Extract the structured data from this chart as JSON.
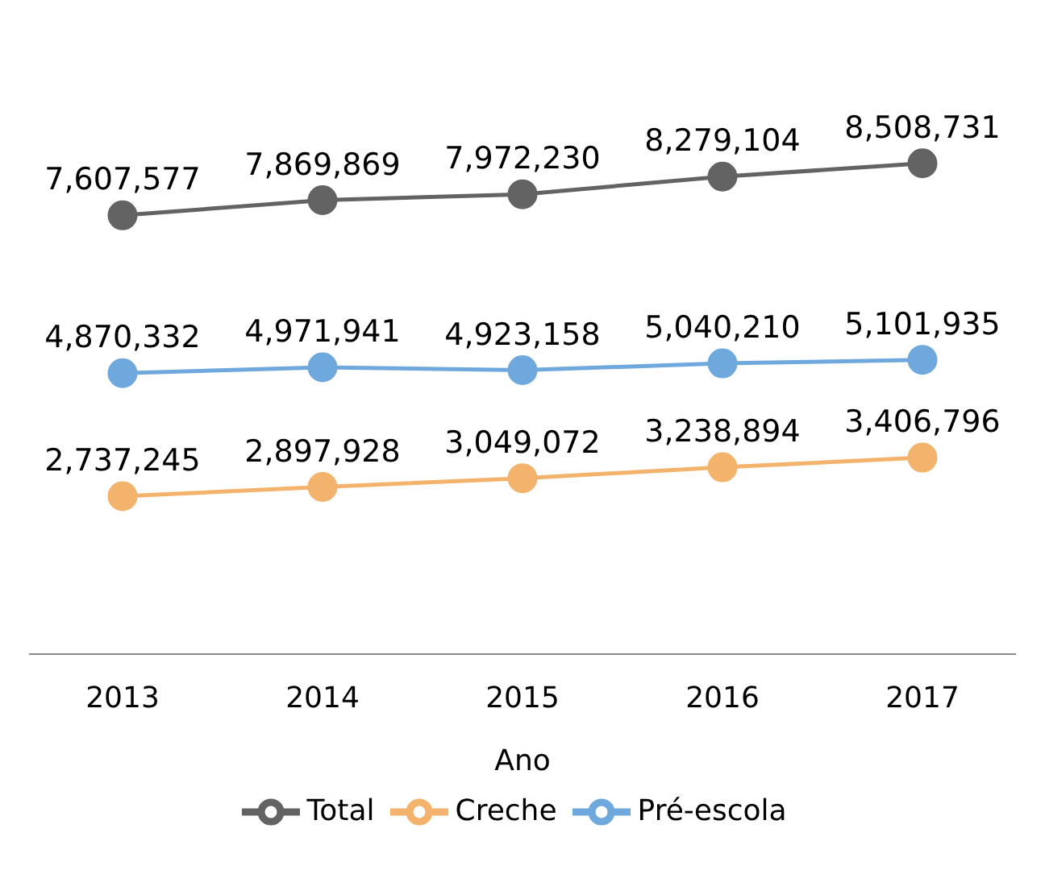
{
  "chart_data": {
    "type": "line",
    "xlabel": "Ano",
    "categories": [
      "2013",
      "2014",
      "2015",
      "2016",
      "2017"
    ],
    "series": [
      {
        "name": "Total",
        "color": "#636363",
        "values": [
          7607577,
          7869869,
          7972230,
          8279104,
          8508731
        ],
        "value_labels": [
          "7,607,577",
          "7,869,869",
          "7,972,230",
          "8,279,104",
          "8,508,731"
        ]
      },
      {
        "name": "Creche",
        "color": "#f4b36c",
        "values": [
          2737245,
          2897928,
          3049072,
          3238894,
          3406796
        ],
        "value_labels": [
          "2,737,245",
          "2,897,928",
          "3,049,072",
          "3,238,894",
          "3,406,796"
        ]
      },
      {
        "name": "Pré-escola",
        "color": "#6fa8dc",
        "values": [
          4870332,
          4971941,
          4923158,
          5040210,
          5101935
        ],
        "value_labels": [
          "4,870,332",
          "4,971,941",
          "4,923,158",
          "5,040,210",
          "5,101,935"
        ]
      }
    ],
    "tick_labels": "x",
    "marker": "circle",
    "line_style": "solid",
    "legend": "bottom"
  }
}
